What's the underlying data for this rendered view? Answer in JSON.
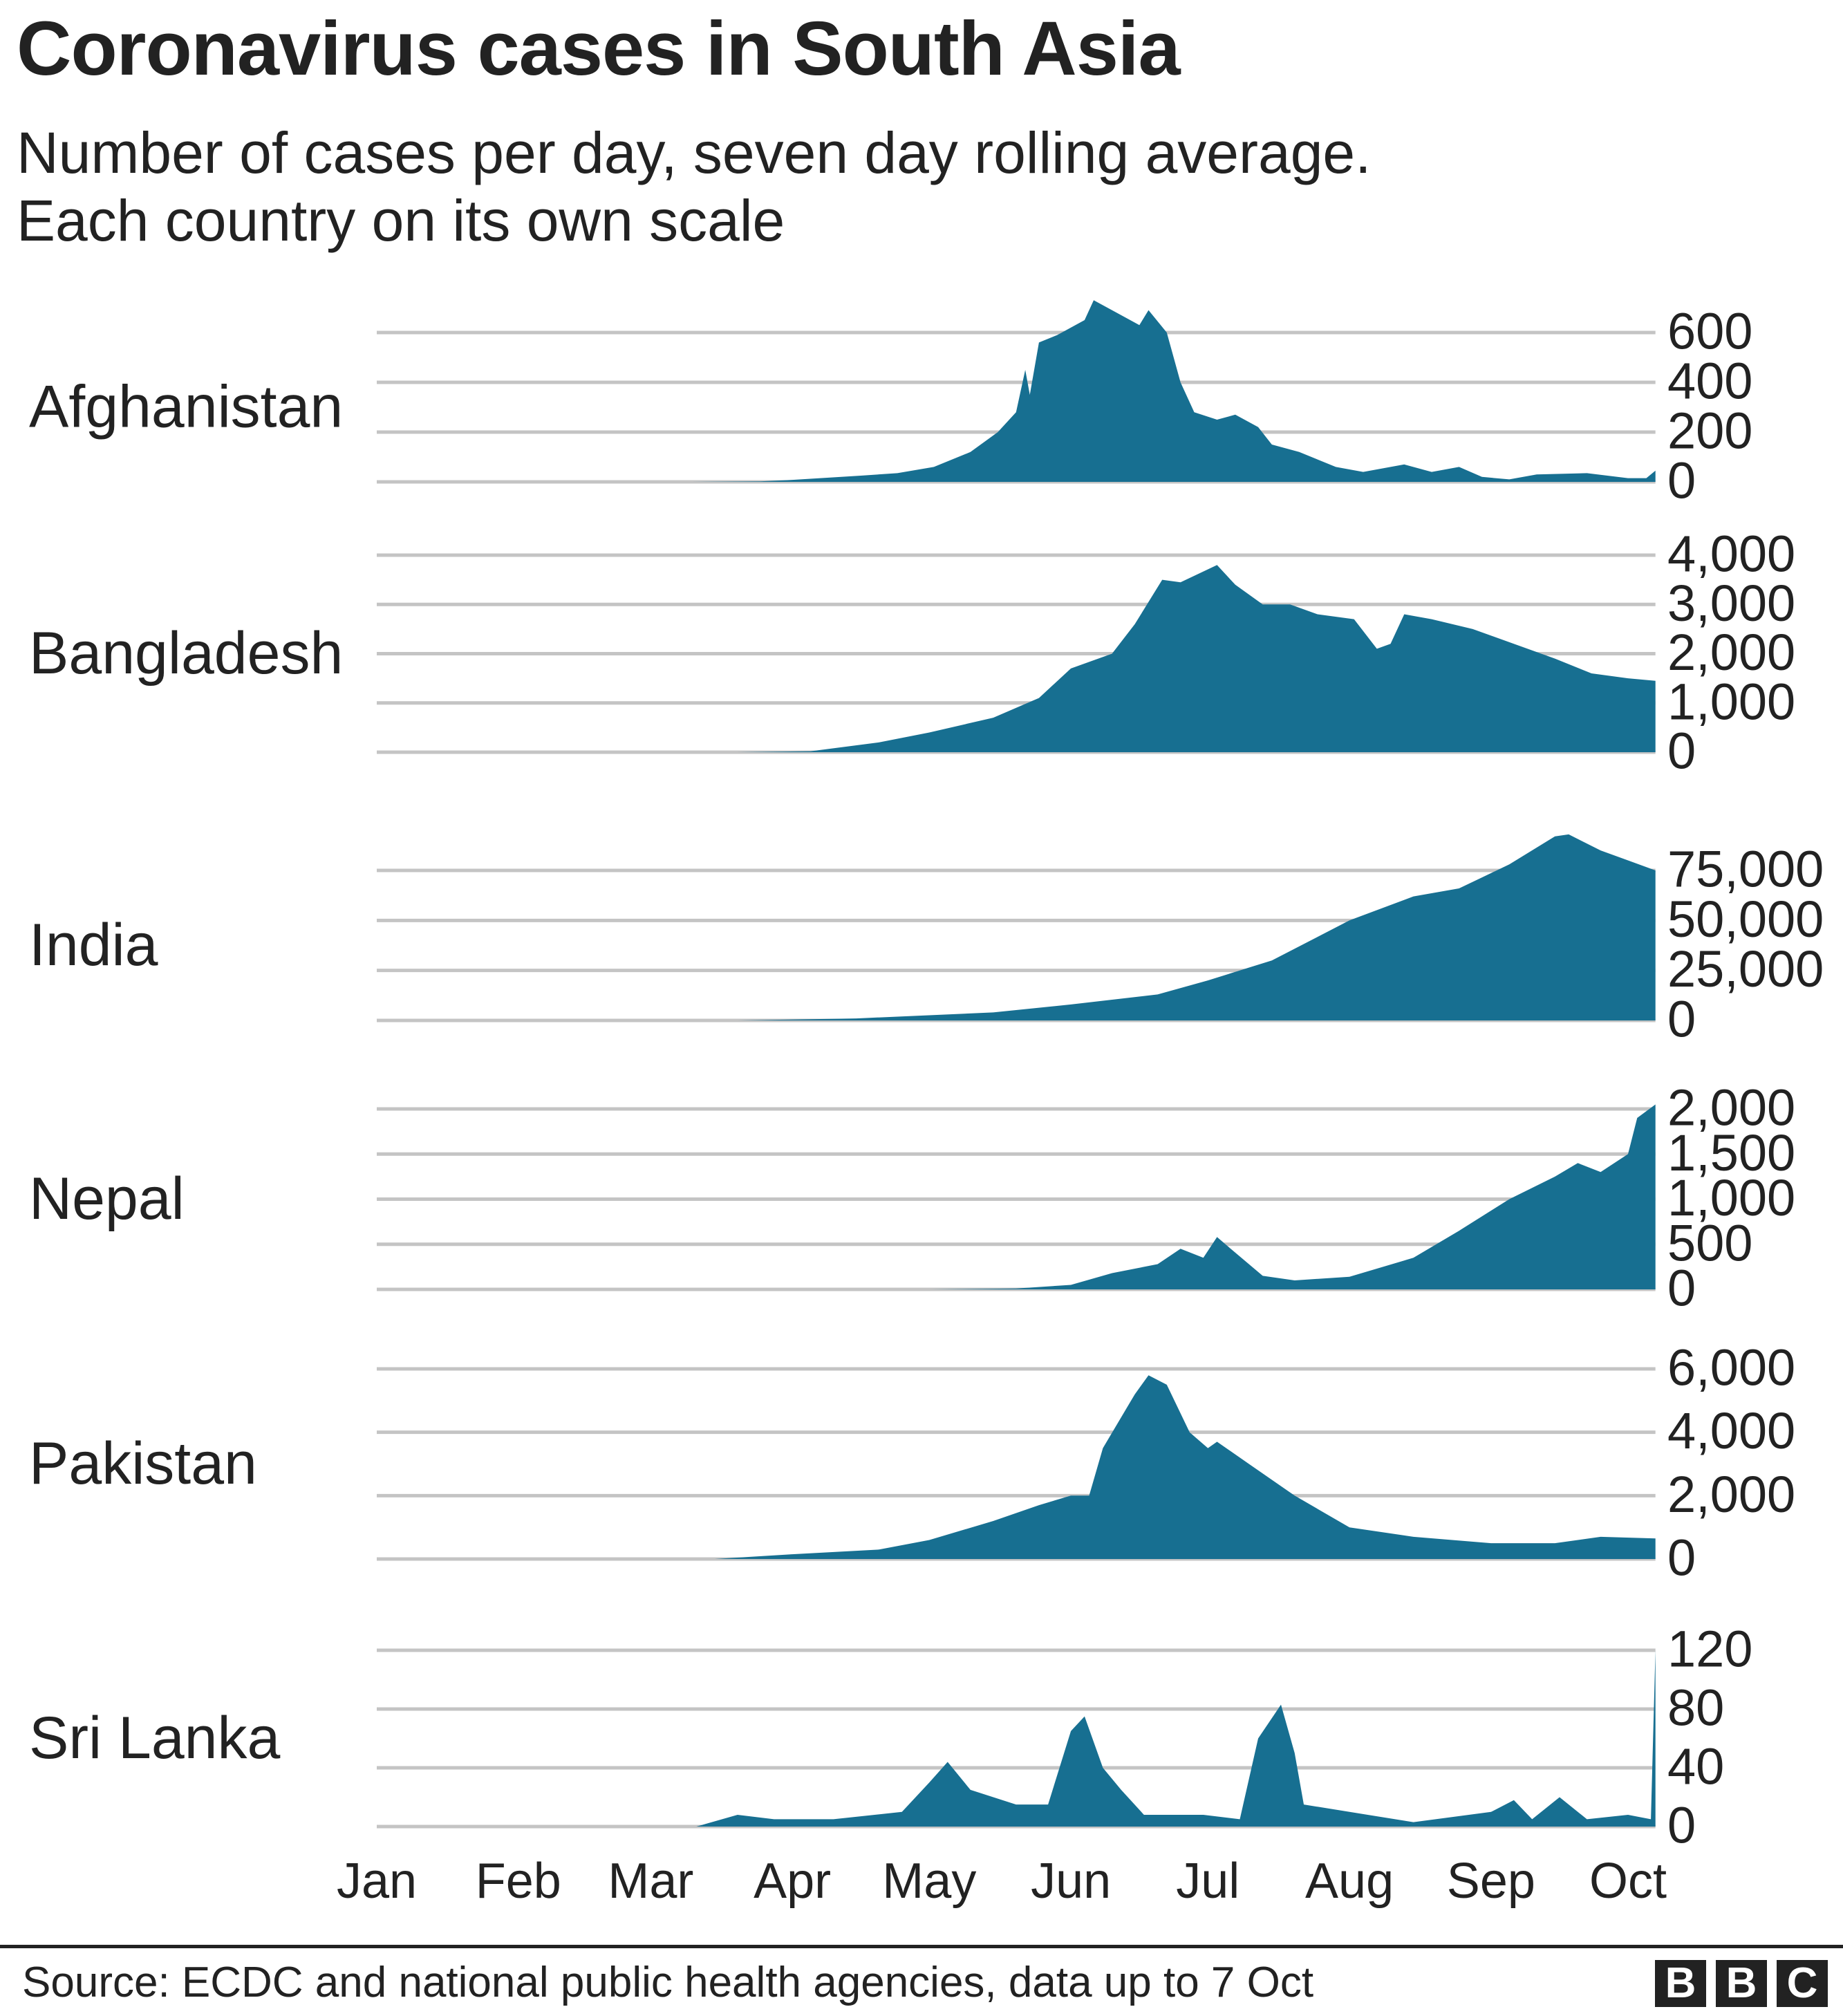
{
  "title": "Coronavirus cases in South Asia",
  "subtitle_lines": [
    "Number of cases per day, seven day rolling average.",
    "Each country on its own scale"
  ],
  "source": "Source: ECDC and national public health agencies, data up to 7 Oct",
  "logo": {
    "letters": [
      "B",
      "B",
      "C"
    ],
    "text": "BBC"
  },
  "chart_data": {
    "type": "area",
    "layout": "small multiples, stacked vertically, shared x axis",
    "fill_color": "#176f91",
    "grid_color": "#c4c4c4",
    "grid": true,
    "x_axis": {
      "ticks": [
        "Jan",
        "Feb",
        "Mar",
        "Apr",
        "May",
        "Jun",
        "Jul",
        "Aug",
        "Sep",
        "Oct"
      ],
      "range": [
        "Jan 1",
        "Oct 7"
      ]
    },
    "panels": [
      {
        "name": "Afghanistan",
        "yticks": [
          0,
          200,
          400,
          600
        ],
        "tick_labels": [
          "0",
          "200",
          "400",
          "600"
        ],
        "ylim": [
          0,
          600
        ],
        "points": [
          [
            "Mar 10",
            0
          ],
          [
            "Mar 25",
            2
          ],
          [
            "Apr 1",
            8
          ],
          [
            "Apr 16",
            25
          ],
          [
            "Apr 24",
            35
          ],
          [
            "May 2",
            60
          ],
          [
            "May 10",
            120
          ],
          [
            "May 16",
            200
          ],
          [
            "May 20",
            280
          ],
          [
            "May 22",
            450
          ],
          [
            "May 23",
            350
          ],
          [
            "May 25",
            560
          ],
          [
            "May 29",
            590
          ],
          [
            "Jun 4",
            650
          ],
          [
            "Jun 6",
            730
          ],
          [
            "Jun 11",
            680
          ],
          [
            "Jun 16",
            630
          ],
          [
            "Jun 18",
            690
          ],
          [
            "Jun 22",
            600
          ],
          [
            "Jun 25",
            400
          ],
          [
            "Jun 28",
            280
          ],
          [
            "Jul 3",
            250
          ],
          [
            "Jul 7",
            270
          ],
          [
            "Jul 12",
            220
          ],
          [
            "Jul 15",
            150
          ],
          [
            "Jul 21",
            120
          ],
          [
            "Jul 29",
            60
          ],
          [
            "Aug 4",
            40
          ],
          [
            "Aug 13",
            70
          ],
          [
            "Aug 19",
            40
          ],
          [
            "Aug 25",
            60
          ],
          [
            "Aug 30",
            20
          ],
          [
            "Sep 5",
            10
          ],
          [
            "Sep 11",
            30
          ],
          [
            "Sep 22",
            35
          ],
          [
            "Oct 1",
            15
          ],
          [
            "Oct 5",
            15
          ],
          [
            "Oct 7",
            45
          ]
        ]
      },
      {
        "name": "Bangladesh",
        "yticks": [
          0,
          1000,
          2000,
          3000,
          4000
        ],
        "tick_labels": [
          "0",
          "1,000",
          "2,000",
          "3,000",
          "4,000"
        ],
        "ylim": [
          0,
          4000
        ],
        "points": [
          [
            "Mar 20",
            0
          ],
          [
            "Apr 5",
            20
          ],
          [
            "Apr 20",
            200
          ],
          [
            "May 1",
            400
          ],
          [
            "May 15",
            700
          ],
          [
            "May 25",
            1100
          ],
          [
            "Jun 1",
            1700
          ],
          [
            "Jun 10",
            2000
          ],
          [
            "Jun 15",
            2600
          ],
          [
            "Jun 21",
            3500
          ],
          [
            "Jun 25",
            3450
          ],
          [
            "Jul 3",
            3800
          ],
          [
            "Jul 7",
            3400
          ],
          [
            "Jul 13",
            3000
          ],
          [
            "Jul 19",
            3000
          ],
          [
            "Jul 25",
            2800
          ],
          [
            "Aug 2",
            2700
          ],
          [
            "Aug 7",
            2100
          ],
          [
            "Aug 10",
            2200
          ],
          [
            "Aug 13",
            2800
          ],
          [
            "Aug 19",
            2700
          ],
          [
            "Aug 28",
            2500
          ],
          [
            "Sep 6",
            2200
          ],
          [
            "Sep 15",
            1900
          ],
          [
            "Sep 23",
            1600
          ],
          [
            "Oct 1",
            1500
          ],
          [
            "Oct 7",
            1450
          ]
        ]
      },
      {
        "name": "India",
        "yticks": [
          0,
          25000,
          50000,
          75000
        ],
        "tick_labels": [
          "0",
          "25,000",
          "50,000",
          "75,000"
        ],
        "ylim": [
          0,
          75000
        ],
        "points": [
          [
            "Mar 20",
            0
          ],
          [
            "Apr 15",
            1000
          ],
          [
            "May 15",
            4000
          ],
          [
            "Jun 1",
            8000
          ],
          [
            "Jun 20",
            13000
          ],
          [
            "Jul 1",
            20000
          ],
          [
            "Jul 15",
            30000
          ],
          [
            "Aug 1",
            50000
          ],
          [
            "Aug 15",
            62000
          ],
          [
            "Aug 25",
            66000
          ],
          [
            "Sep 5",
            78000
          ],
          [
            "Sep 15",
            92000
          ],
          [
            "Sep 18",
            93000
          ],
          [
            "Sep 25",
            85000
          ],
          [
            "Oct 1",
            80000
          ],
          [
            "Oct 7",
            75000
          ]
        ]
      },
      {
        "name": "Nepal",
        "yticks": [
          0,
          500,
          1000,
          1500,
          2000
        ],
        "tick_labels": [
          "0",
          "500",
          "1,000",
          "1,500",
          "2,000"
        ],
        "ylim": [
          0,
          2000
        ],
        "points": [
          [
            "May 1",
            0
          ],
          [
            "May 20",
            10
          ],
          [
            "Jun 1",
            50
          ],
          [
            "Jun 10",
            180
          ],
          [
            "Jun 20",
            280
          ],
          [
            "Jun 25",
            450
          ],
          [
            "Jun 30",
            350
          ],
          [
            "Jul 3",
            580
          ],
          [
            "Jul 6",
            450
          ],
          [
            "Jul 13",
            150
          ],
          [
            "Jul 20",
            100
          ],
          [
            "Aug 1",
            140
          ],
          [
            "Aug 15",
            350
          ],
          [
            "Aug 25",
            650
          ],
          [
            "Sep 5",
            1000
          ],
          [
            "Sep 15",
            1250
          ],
          [
            "Sep 20",
            1400
          ],
          [
            "Sep 25",
            1300
          ],
          [
            "Oct 1",
            1500
          ],
          [
            "Oct 3",
            1900
          ],
          [
            "Oct 7",
            2050
          ]
        ]
      },
      {
        "name": "Pakistan",
        "yticks": [
          0,
          2000,
          4000,
          6000
        ],
        "tick_labels": [
          "0",
          "2,000",
          "4,000",
          "6,000"
        ],
        "ylim": [
          0,
          6000
        ],
        "points": [
          [
            "Mar 15",
            0
          ],
          [
            "Apr 1",
            150
          ],
          [
            "Apr 20",
            300
          ],
          [
            "May 1",
            600
          ],
          [
            "May 15",
            1200
          ],
          [
            "May 25",
            1700
          ],
          [
            "Jun 1",
            2000
          ],
          [
            "Jun 5",
            2000
          ],
          [
            "Jun 8",
            3500
          ],
          [
            "Jun 15",
            5200
          ],
          [
            "Jun 18",
            5800
          ],
          [
            "Jun 22",
            5500
          ],
          [
            "Jun 27",
            4000
          ],
          [
            "Jul 1",
            3500
          ],
          [
            "Jul 3",
            3700
          ],
          [
            "Jul 10",
            3000
          ],
          [
            "Jul 20",
            2000
          ],
          [
            "Aug 1",
            1000
          ],
          [
            "Aug 15",
            700
          ],
          [
            "Sep 1",
            500
          ],
          [
            "Sep 15",
            500
          ],
          [
            "Sep 25",
            700
          ],
          [
            "Oct 7",
            650
          ]
        ]
      },
      {
        "name": "Sri Lanka",
        "yticks": [
          0,
          40,
          80,
          120
        ],
        "tick_labels": [
          "0",
          "40",
          "80",
          "120"
        ],
        "ylim": [
          0,
          120
        ],
        "points": [
          [
            "Mar 11",
            0
          ],
          [
            "Mar 20",
            8
          ],
          [
            "Mar 28",
            5
          ],
          [
            "Apr 10",
            5
          ],
          [
            "Apr 25",
            10
          ],
          [
            "May 1",
            30
          ],
          [
            "May 5",
            44
          ],
          [
            "May 10",
            25
          ],
          [
            "May 20",
            15
          ],
          [
            "May 27",
            15
          ],
          [
            "Jun 1",
            65
          ],
          [
            "Jun 4",
            75
          ],
          [
            "Jun 8",
            40
          ],
          [
            "Jun 12",
            25
          ],
          [
            "Jun 17",
            8
          ],
          [
            "Jun 30",
            8
          ],
          [
            "Jul 8",
            5
          ],
          [
            "Jul 12",
            60
          ],
          [
            "Jul 17",
            83
          ],
          [
            "Jul 20",
            50
          ],
          [
            "Jul 22",
            15
          ],
          [
            "Aug 5",
            8
          ],
          [
            "Aug 15",
            3
          ],
          [
            "Sep 1",
            10
          ],
          [
            "Sep 6",
            18
          ],
          [
            "Sep 10",
            5
          ],
          [
            "Sep 16",
            20
          ],
          [
            "Sep 22",
            5
          ],
          [
            "Oct 1",
            8
          ],
          [
            "Oct 6",
            5
          ],
          [
            "Oct 7",
            120
          ]
        ]
      }
    ]
  }
}
